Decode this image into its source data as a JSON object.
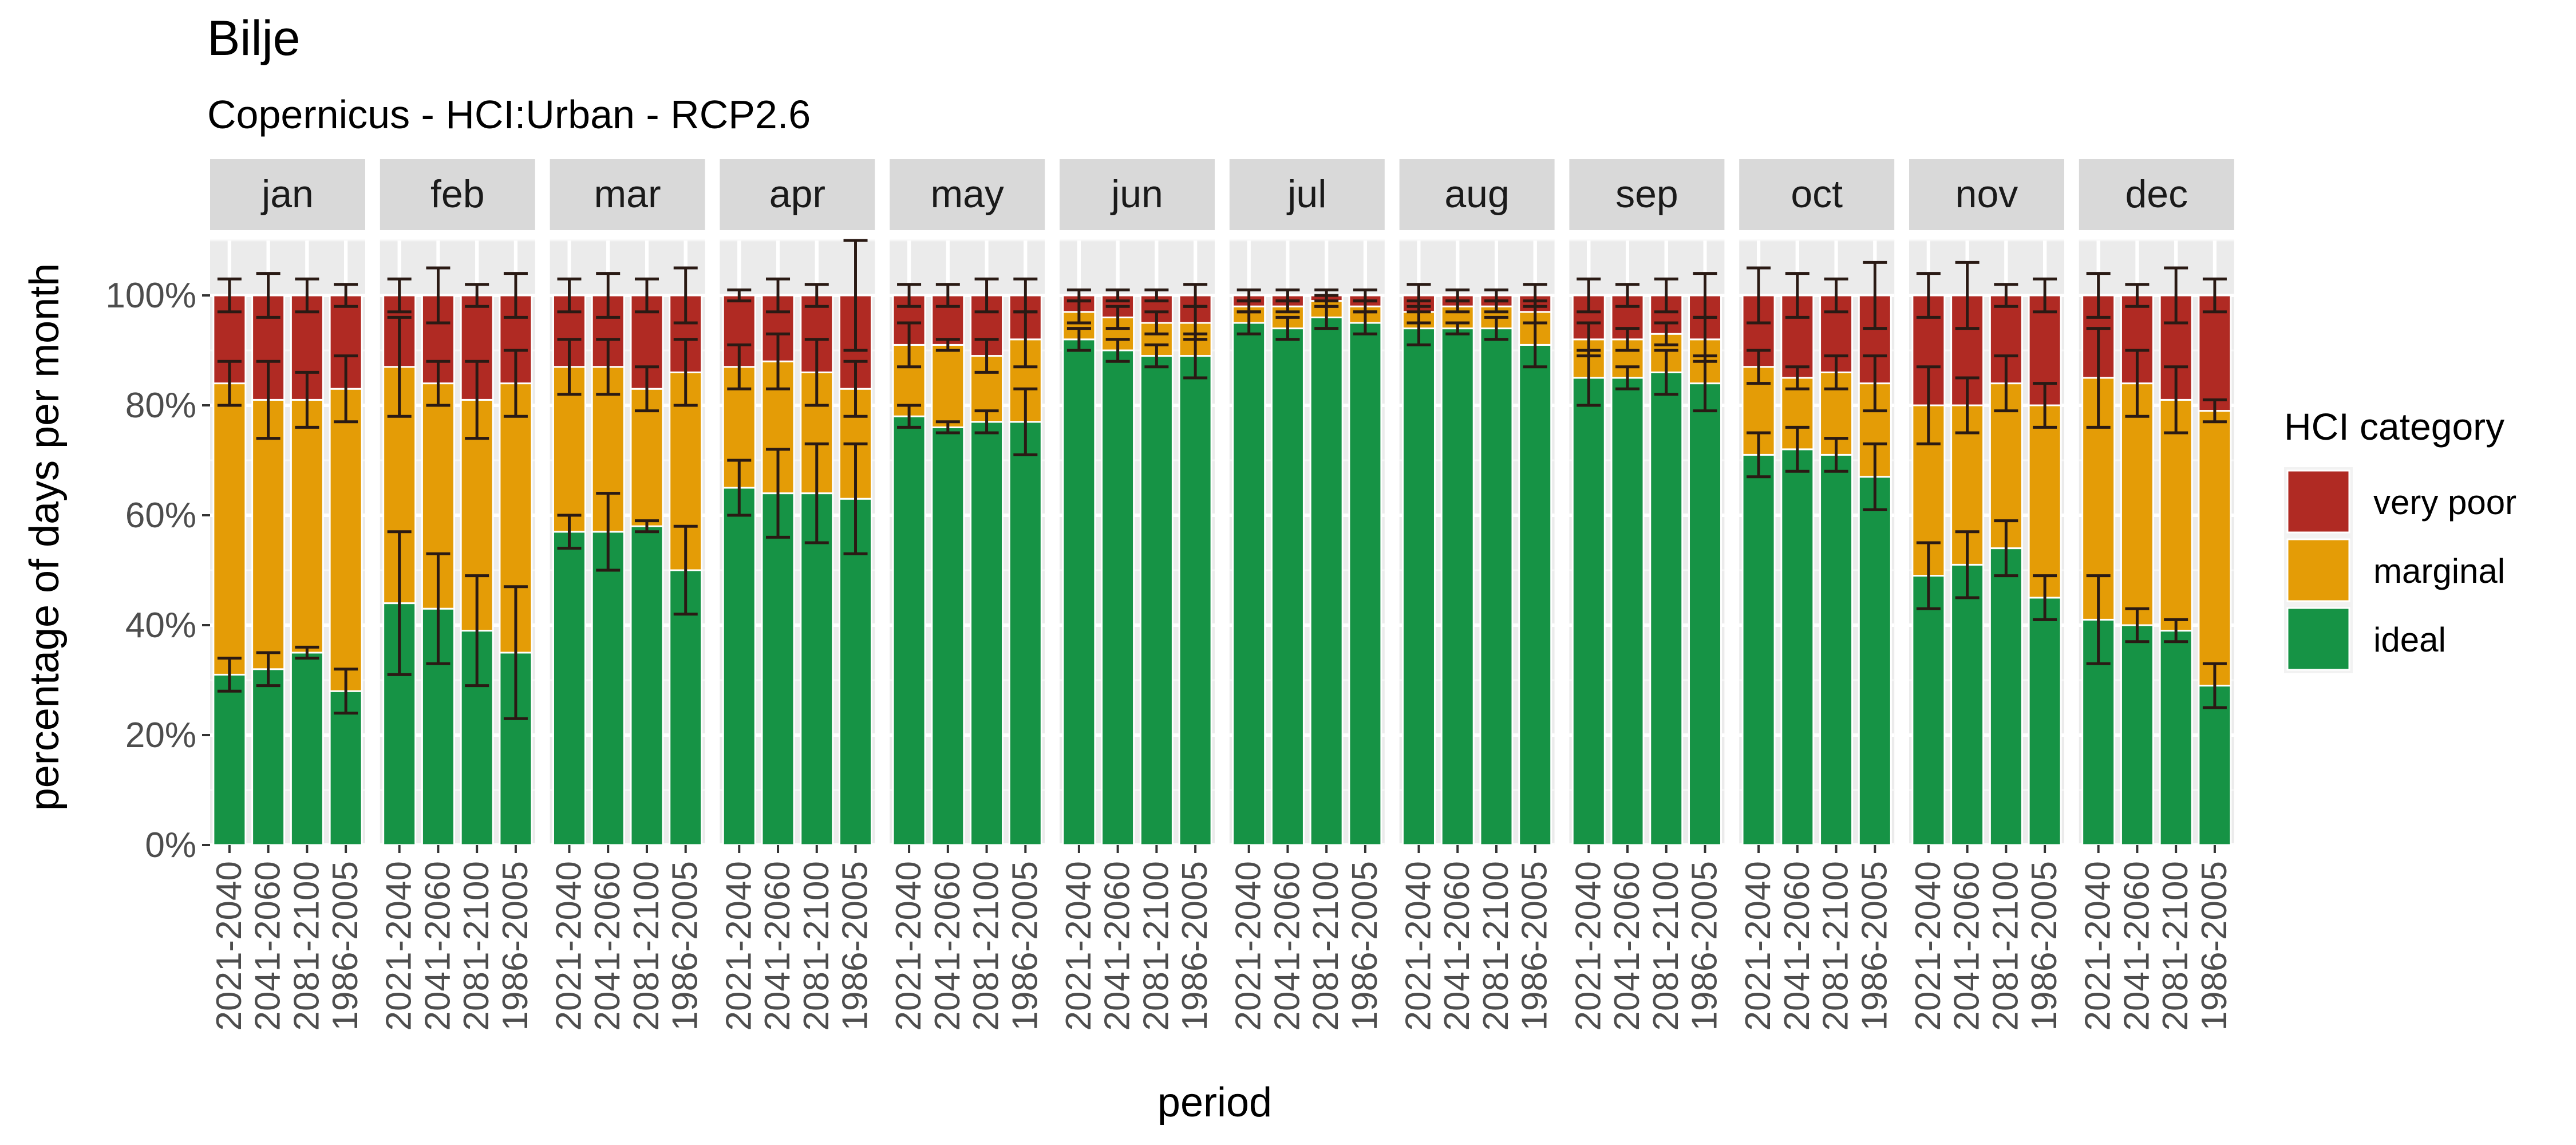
{
  "chart_data": {
    "type": "bar",
    "stacked": true,
    "title": "Bilje",
    "subtitle": "Copernicus - HCI:Urban - RCP2.6",
    "xlabel": "period",
    "ylabel": "percentage of days per month",
    "ylim": [
      0,
      110
    ],
    "yticks": [
      "0%",
      "20%",
      "40%",
      "60%",
      "80%",
      "100%"
    ],
    "ytick_values": [
      0,
      20,
      40,
      60,
      80,
      100
    ],
    "grid": true,
    "legend_position": "right",
    "legend_title": "HCI category",
    "categories": [
      "2021-2040",
      "2041-2060",
      "2081-2100",
      "1986-2005"
    ],
    "facets": [
      "jan",
      "feb",
      "mar",
      "apr",
      "may",
      "jun",
      "jul",
      "aug",
      "sep",
      "oct",
      "nov",
      "dec"
    ],
    "series": [
      {
        "key": "very_poor",
        "name": "very poor",
        "color": "#b02a23"
      },
      {
        "key": "marginal",
        "name": "marginal",
        "color": "#e49c06"
      },
      {
        "key": "ideal",
        "name": "ideal",
        "color": "#169345"
      }
    ],
    "values": {
      "jan": {
        "ideal": [
          31,
          32,
          35,
          28
        ],
        "marginal": [
          53,
          49,
          46,
          55
        ],
        "error_ideal": [
          3,
          3,
          1,
          4
        ],
        "error_marginal": [
          4,
          7,
          5,
          6
        ],
        "error_total": [
          3,
          4,
          3,
          2
        ]
      },
      "feb": {
        "ideal": [
          44,
          43,
          39,
          35
        ],
        "marginal": [
          43,
          41,
          42,
          49
        ],
        "error_ideal": [
          13,
          10,
          10,
          12
        ],
        "error_marginal": [
          9,
          4,
          7,
          6
        ],
        "error_total": [
          3,
          5,
          2,
          4
        ]
      },
      "mar": {
        "ideal": [
          57,
          57,
          58,
          50
        ],
        "marginal": [
          30,
          30,
          25,
          36
        ],
        "error_ideal": [
          3,
          7,
          1,
          8
        ],
        "error_marginal": [
          5,
          5,
          4,
          6
        ],
        "error_total": [
          3,
          4,
          3,
          5
        ]
      },
      "apr": {
        "ideal": [
          65,
          64,
          64,
          63
        ],
        "marginal": [
          22,
          24,
          22,
          20
        ],
        "error_ideal": [
          5,
          8,
          9,
          10
        ],
        "error_marginal": [
          4,
          5,
          6,
          5
        ],
        "error_total": [
          1,
          3,
          2,
          10
        ]
      },
      "may": {
        "ideal": [
          78,
          76,
          77,
          77
        ],
        "marginal": [
          13,
          15,
          12,
          15
        ],
        "error_ideal": [
          2,
          1,
          2,
          6
        ],
        "error_marginal": [
          4,
          1,
          3,
          5
        ],
        "error_total": [
          2,
          2,
          3,
          3
        ]
      },
      "jun": {
        "ideal": [
          92,
          90,
          89,
          89
        ],
        "marginal": [
          5,
          6,
          6,
          6
        ],
        "error_ideal": [
          2,
          2,
          2,
          4
        ],
        "error_marginal": [
          2,
          2,
          2,
          3
        ],
        "error_total": [
          1,
          1,
          1,
          2
        ]
      },
      "jul": {
        "ideal": [
          95,
          94,
          96,
          95
        ],
        "marginal": [
          3,
          4,
          3,
          3
        ],
        "error_ideal": [
          2,
          2,
          2,
          2
        ],
        "error_marginal": [
          1,
          1,
          1,
          1
        ],
        "error_total": [
          1,
          1,
          1,
          1
        ]
      },
      "aug": {
        "ideal": [
          94,
          94,
          94,
          91
        ],
        "marginal": [
          3,
          4,
          4,
          6
        ],
        "error_ideal": [
          3,
          1,
          2,
          4
        ],
        "error_marginal": [
          2,
          1,
          1,
          2
        ],
        "error_total": [
          2,
          1,
          1,
          2
        ]
      },
      "sep": {
        "ideal": [
          85,
          85,
          86,
          84
        ],
        "marginal": [
          7,
          7,
          7,
          8
        ],
        "error_ideal": [
          5,
          2,
          4,
          5
        ],
        "error_marginal": [
          3,
          2,
          2,
          4
        ],
        "error_total": [
          3,
          2,
          3,
          4
        ]
      },
      "oct": {
        "ideal": [
          71,
          72,
          71,
          67
        ],
        "marginal": [
          16,
          13,
          15,
          17
        ],
        "error_ideal": [
          4,
          4,
          3,
          6
        ],
        "error_marginal": [
          3,
          2,
          3,
          5
        ],
        "error_total": [
          5,
          4,
          3,
          6
        ]
      },
      "nov": {
        "ideal": [
          49,
          51,
          54,
          45
        ],
        "marginal": [
          31,
          29,
          30,
          35
        ],
        "error_ideal": [
          6,
          6,
          5,
          4
        ],
        "error_marginal": [
          7,
          5,
          5,
          4
        ],
        "error_total": [
          4,
          6,
          2,
          3
        ]
      },
      "dec": {
        "ideal": [
          41,
          40,
          39,
          29
        ],
        "marginal": [
          44,
          44,
          42,
          50
        ],
        "error_ideal": [
          8,
          3,
          2,
          4
        ],
        "error_marginal": [
          9,
          6,
          6,
          2
        ],
        "error_total": [
          4,
          2,
          5,
          3
        ]
      }
    }
  }
}
